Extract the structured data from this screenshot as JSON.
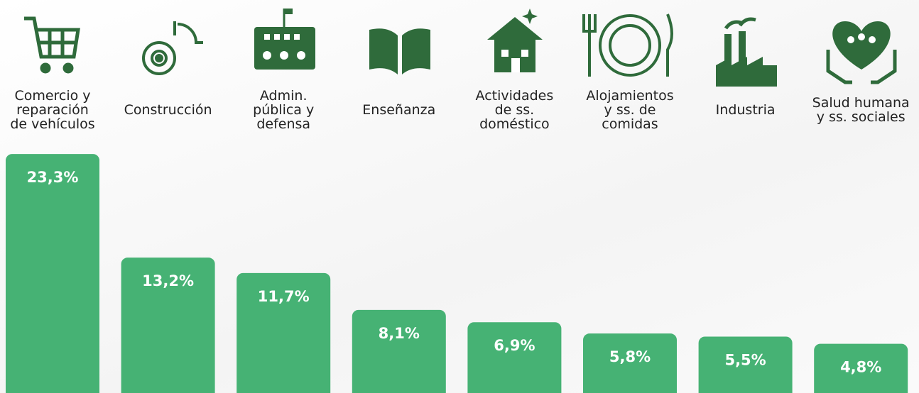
{
  "chart_data": {
    "type": "bar",
    "categories": [
      "Comercio y\nreparación\nde vehículos",
      "Construcción",
      "Admin.\npública y\ndefensa",
      "Enseñanza",
      "Actividades\nde ss.\ndoméstico",
      "Alojamientos\ny ss. de\ncomidas",
      "Industria",
      "Salud humana\ny ss. sociales"
    ],
    "values": [
      23.3,
      13.2,
      11.7,
      8.1,
      6.9,
      5.8,
      5.5,
      4.8
    ],
    "value_labels": [
      "23,3%",
      "13,2%",
      "11,7%",
      "8,1%",
      "6,9%",
      "5,8%",
      "5,5%",
      "4,8%"
    ],
    "color": "#46b274"
  }
}
